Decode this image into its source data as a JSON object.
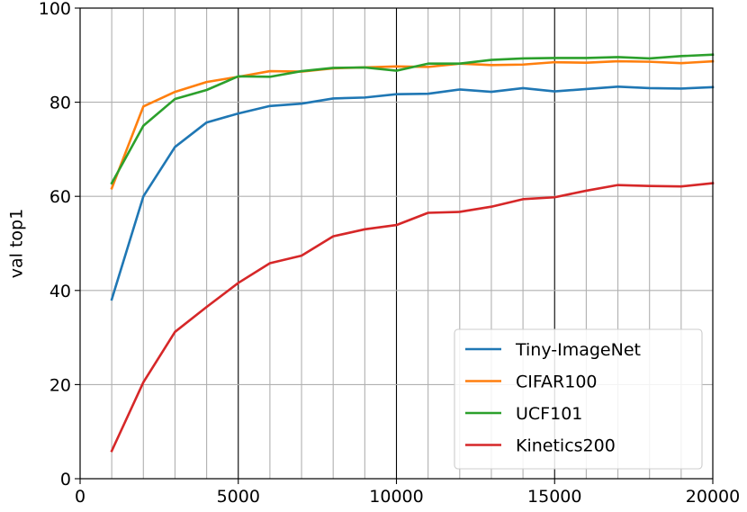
{
  "chart_data": {
    "type": "line",
    "title": "",
    "xlabel": "",
    "ylabel": "val top1",
    "xlim": [
      0,
      20000
    ],
    "ylim": [
      0,
      100
    ],
    "x_ticks": [
      0,
      5000,
      10000,
      15000,
      20000
    ],
    "y_ticks": [
      0,
      20,
      40,
      60,
      80,
      100
    ],
    "grid": true,
    "minor_grid_step": 1000,
    "major_grid_step": 5000,
    "legend_position": "lower-right",
    "x": [
      1000,
      2000,
      3000,
      4000,
      5000,
      6000,
      7000,
      8000,
      9000,
      10000,
      11000,
      12000,
      13000,
      14000,
      15000,
      16000,
      17000,
      18000,
      19000,
      20000
    ],
    "series": [
      {
        "name": "Tiny-ImageNet",
        "color": "#1f77b4",
        "values": [
          38.1,
          60.0,
          70.5,
          75.7,
          77.6,
          79.2,
          79.7,
          80.8,
          81.0,
          81.7,
          81.8,
          82.7,
          82.2,
          83.0,
          82.3,
          82.8,
          83.3,
          83.0,
          82.9,
          83.2
        ]
      },
      {
        "name": "CIFAR100",
        "color": "#ff7f0e",
        "values": [
          61.7,
          79.1,
          82.2,
          84.3,
          85.4,
          86.6,
          86.5,
          87.2,
          87.4,
          87.6,
          87.5,
          88.2,
          87.9,
          88.0,
          88.5,
          88.4,
          88.7,
          88.6,
          88.3,
          88.7
        ]
      },
      {
        "name": "UCF101",
        "color": "#2ca02c",
        "values": [
          62.8,
          75.0,
          80.7,
          82.6,
          85.5,
          85.4,
          86.6,
          87.3,
          87.4,
          86.7,
          88.2,
          88.2,
          89.0,
          89.3,
          89.4,
          89.4,
          89.6,
          89.3,
          89.8,
          90.1
        ]
      },
      {
        "name": "Kinetics200",
        "color": "#d62728",
        "values": [
          5.9,
          20.5,
          31.2,
          36.5,
          41.6,
          45.8,
          47.4,
          51.5,
          53.0,
          53.9,
          56.5,
          56.7,
          57.8,
          59.4,
          59.8,
          61.2,
          62.4,
          62.2,
          62.1,
          62.8
        ]
      }
    ]
  }
}
